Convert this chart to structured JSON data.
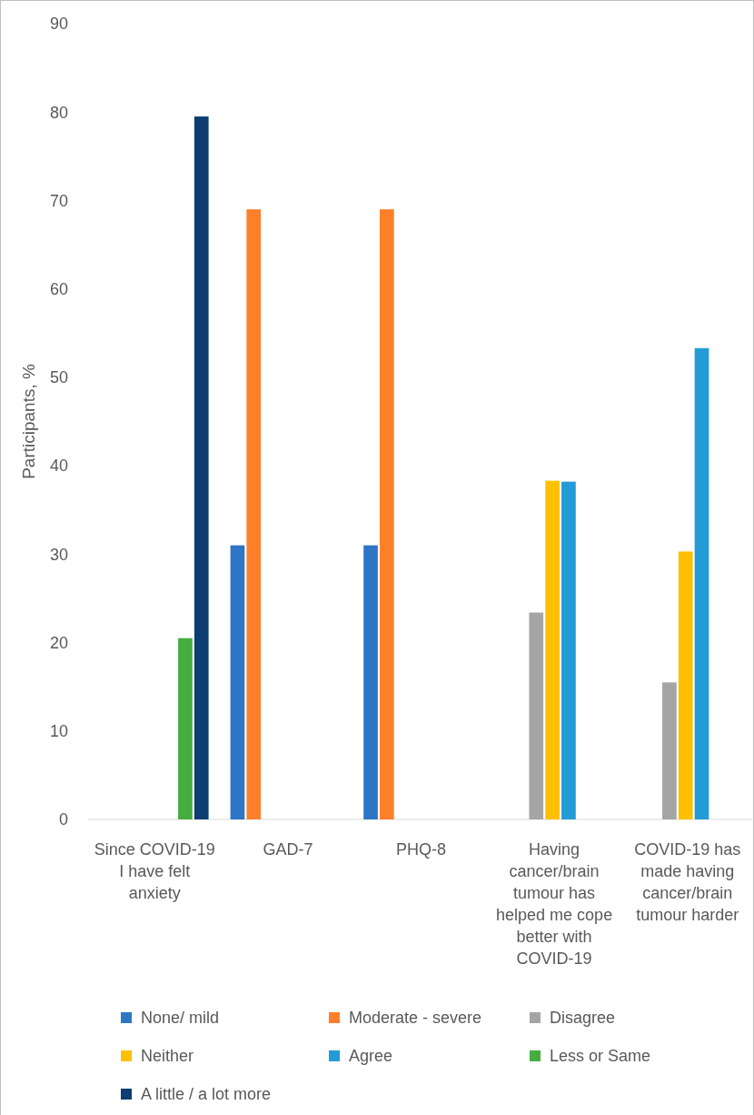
{
  "chart_data": {
    "type": "bar",
    "ylabel": "Participants, %",
    "categories": [
      "Since COVID-19 I have felt anxiety",
      "GAD-7",
      "PHQ-8",
      "Having cancer/brain tumour has helped me cope better with COVID-19",
      "COVID-19 has made having cancer/brain tumour harder"
    ],
    "series": [
      {
        "name": "None/ mild",
        "color": "#2e75c6",
        "values": [
          null,
          31,
          31,
          null,
          null
        ]
      },
      {
        "name": "Moderate - severe",
        "color": "#fd7f2a",
        "values": [
          null,
          69,
          69,
          null,
          null
        ]
      },
      {
        "name": "Disagree",
        "color": "#a5a5a5",
        "values": [
          null,
          null,
          null,
          23.4,
          15.5
        ]
      },
      {
        "name": "Neither",
        "color": "#ffc000",
        "values": [
          null,
          null,
          null,
          38.3,
          30.3
        ]
      },
      {
        "name": "Agree",
        "color": "#229bd6",
        "values": [
          null,
          null,
          null,
          38.2,
          53.3
        ]
      },
      {
        "name": "Less or Same",
        "color": "#45ad3e",
        "values": [
          20.5,
          null,
          null,
          null,
          null
        ]
      },
      {
        "name": "A little / a lot more",
        "color": "#0d3d72",
        "values": [
          79.5,
          null,
          null,
          null,
          null
        ]
      }
    ],
    "ylim": [
      0,
      90
    ],
    "yticks": [
      0,
      10,
      20,
      30,
      40,
      50,
      60,
      70,
      80,
      90
    ],
    "legend": "bottom"
  }
}
